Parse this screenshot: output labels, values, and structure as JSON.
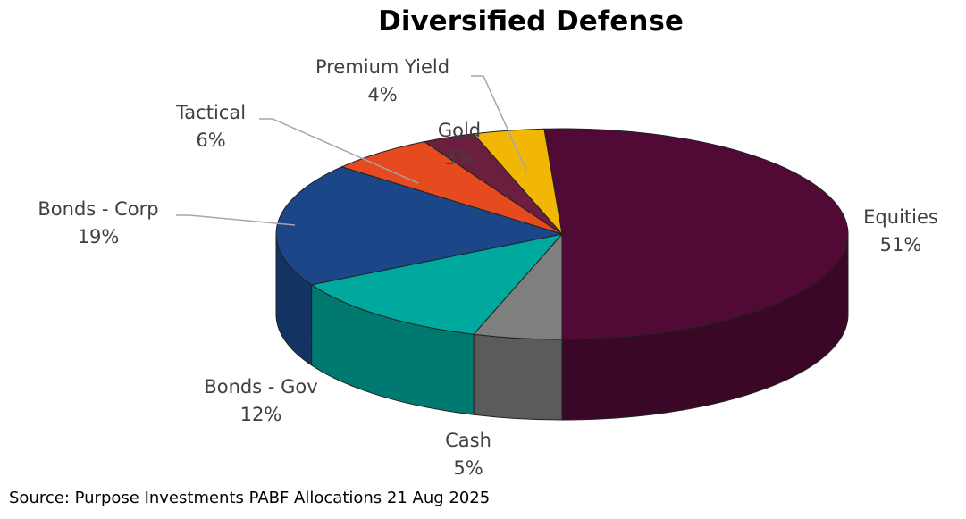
{
  "chart_data": {
    "type": "pie",
    "title": "Diversified Defense",
    "three_d": true,
    "slices": [
      {
        "label": "Equities",
        "value": 51,
        "display": "51%",
        "color": "#500a35"
      },
      {
        "label": "Cash",
        "value": 5,
        "display": "5%",
        "color": "#7f7f7f"
      },
      {
        "label": "Bonds - Gov",
        "value": 12,
        "display": "12%",
        "color": "#00a99d"
      },
      {
        "label": "Bonds - Corp",
        "value": 19,
        "display": "19%",
        "color": "#1b4789"
      },
      {
        "label": "Tactical",
        "value": 6,
        "display": "6%",
        "color": "#e54b1e"
      },
      {
        "label": "Gold",
        "value": 3,
        "display": "3%",
        "color": "#6b1e3e"
      },
      {
        "label": "Premium Yield",
        "value": 4,
        "display": "4%",
        "color": "#f2b705"
      }
    ],
    "source": "Source: Purpose Investments PABF Allocations 21 Aug 2025"
  }
}
